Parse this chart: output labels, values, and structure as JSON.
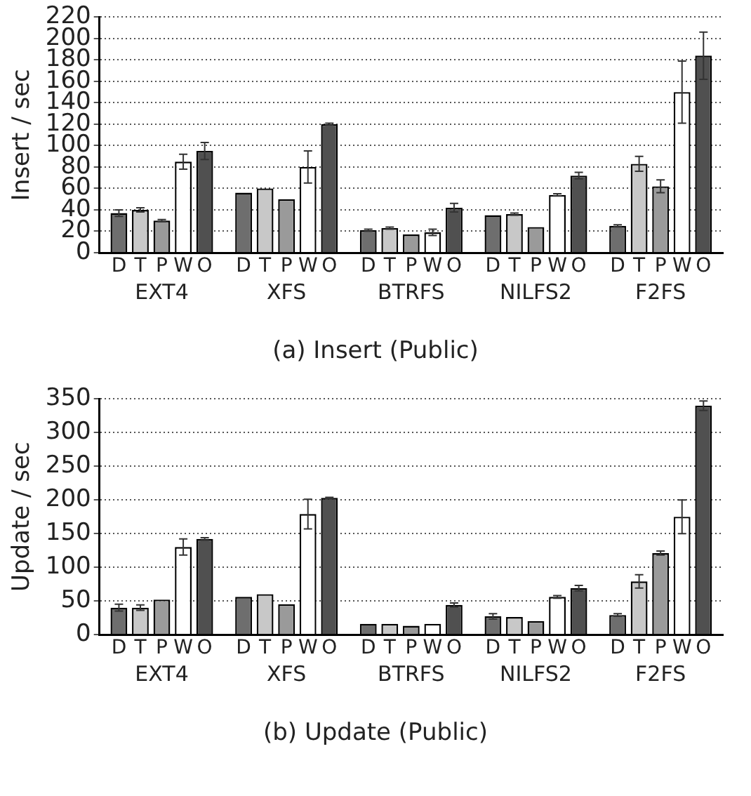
{
  "chart_data": [
    {
      "type": "bar",
      "ylabel": "Insert / sec",
      "annotations": [
        "(a) Insert (Public)"
      ],
      "categories": [
        "EXT4",
        "XFS",
        "BTRFS",
        "NILFS2",
        "F2FS"
      ],
      "ylim": [
        0,
        220
      ],
      "yticks": [
        0,
        20,
        40,
        60,
        80,
        100,
        120,
        140,
        160,
        180,
        200,
        220
      ],
      "grid": "y",
      "line_style": "dotted",
      "series": [
        {
          "name": "D",
          "color": "#6e6e6e",
          "values": [
            37,
            56,
            21,
            35,
            25
          ],
          "errors": [
            3,
            null,
            1,
            null,
            1
          ]
        },
        {
          "name": "T",
          "color": "#c8c8c8",
          "values": [
            40,
            60,
            23,
            36,
            83
          ],
          "errors": [
            2,
            null,
            1,
            1,
            7
          ]
        },
        {
          "name": "P",
          "color": "#9a9a9a",
          "values": [
            30,
            50,
            17,
            24,
            62
          ],
          "errors": [
            1,
            null,
            null,
            null,
            6
          ]
        },
        {
          "name": "W",
          "color": "#ffffff",
          "values": [
            85,
            80,
            19,
            54,
            150
          ],
          "errors": [
            7,
            15,
            3,
            1,
            29
          ]
        },
        {
          "name": "O",
          "color": "#505050",
          "values": [
            95,
            120,
            42,
            72,
            184
          ],
          "errors": [
            8,
            1,
            4,
            3,
            22
          ]
        }
      ]
    },
    {
      "type": "bar",
      "ylabel": "Update / sec",
      "annotations": [
        "(b) Update (Public)"
      ],
      "categories": [
        "EXT4",
        "XFS",
        "BTRFS",
        "NILFS2",
        "F2FS"
      ],
      "ylim": [
        0,
        350
      ],
      "yticks": [
        0,
        50,
        100,
        150,
        200,
        250,
        300,
        350
      ],
      "grid": "y",
      "line_style": "dotted",
      "series": [
        {
          "name": "D",
          "color": "#6e6e6e",
          "values": [
            40,
            56,
            16,
            27,
            29
          ],
          "errors": [
            5,
            null,
            null,
            4,
            2
          ]
        },
        {
          "name": "T",
          "color": "#c8c8c8",
          "values": [
            40,
            60,
            16,
            26,
            79
          ],
          "errors": [
            4,
            null,
            null,
            null,
            10
          ]
        },
        {
          "name": "P",
          "color": "#9a9a9a",
          "values": [
            52,
            45,
            13,
            20,
            121
          ],
          "errors": [
            null,
            null,
            null,
            null,
            3
          ]
        },
        {
          "name": "W",
          "color": "#ffffff",
          "values": [
            130,
            179,
            16,
            56,
            175
          ],
          "errors": [
            12,
            22,
            null,
            2,
            25
          ]
        },
        {
          "name": "O",
          "color": "#505050",
          "values": [
            142,
            203,
            44,
            69,
            340
          ],
          "errors": [
            2,
            1,
            3,
            4,
            7
          ]
        }
      ]
    }
  ]
}
